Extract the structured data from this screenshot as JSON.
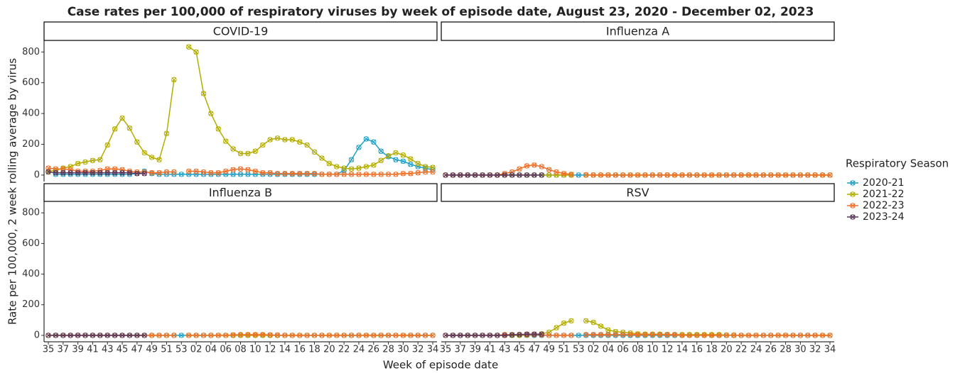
{
  "chart_data": {
    "type": "line",
    "title": "Case rates per 100,000 of respiratory viruses by week of episode date, August 23, 2020 - December 02, 2023",
    "x_label": "Week of episode date",
    "y_label": "Rate per 100,000, 2 week rolling average by virus",
    "legend_title": "Respiratory Season",
    "legend": "right",
    "categories": [
      "35",
      null,
      "37",
      null,
      "39",
      null,
      "41",
      null,
      "43",
      null,
      "45",
      null,
      "47",
      null,
      "49",
      null,
      "51",
      null,
      "53",
      null,
      "02",
      null,
      "04",
      null,
      "06",
      null,
      "08",
      null,
      "10",
      null,
      "12",
      null,
      "14",
      null,
      "16",
      null,
      "18",
      null,
      "20",
      null,
      "22",
      null,
      "24",
      null,
      "26",
      null,
      "28",
      null,
      "30",
      null,
      "32",
      null,
      "34"
    ],
    "ylim": [
      -42,
      875
    ],
    "yticks": [
      0,
      200,
      400,
      600,
      800
    ],
    "seasons": [
      {
        "name": "2020-21",
        "color": "#1f9fc4"
      },
      {
        "name": "2021-22",
        "color": "#b3ad00"
      },
      {
        "name": "2022-23",
        "color": "#ef7028"
      },
      {
        "name": "2023-24",
        "color": "#5a3559"
      }
    ],
    "facets": [
      {
        "title": "COVID-19",
        "series": [
          {
            "values": [
              null,
              5,
              5,
              5,
              5,
              5,
              5,
              5,
              5,
              5,
              5,
              5,
              10,
              25,
              10,
              5,
              5,
              5,
              5,
              5,
              5,
              5,
              5,
              5,
              5,
              5,
              5,
              5,
              5,
              5,
              5,
              5,
              5,
              5,
              5,
              5,
              5,
              5,
              5,
              5,
              30,
              100,
              180,
              235,
              215,
              155,
              120,
              100,
              90,
              70,
              55,
              45,
              35
            ]
          },
          {
            "values": [
              25,
              30,
              45,
              55,
              75,
              85,
              95,
              100,
              195,
              300,
              370,
              305,
              215,
              145,
              115,
              100,
              270,
              620,
              null,
              833,
              800,
              530,
              400,
              300,
              220,
              170,
              140,
              140,
              155,
              195,
              230,
              240,
              230,
              230,
              215,
              195,
              150,
              110,
              75,
              55,
              45,
              40,
              45,
              55,
              65,
              95,
              125,
              145,
              130,
              105,
              75,
              55,
              50
            ]
          },
          {
            "values": [
              45,
              40,
              40,
              35,
              25,
              25,
              25,
              30,
              40,
              40,
              35,
              25,
              20,
              20,
              15,
              15,
              20,
              20,
              null,
              25,
              25,
              20,
              15,
              15,
              25,
              35,
              40,
              35,
              25,
              15,
              15,
              10,
              10,
              10,
              10,
              10,
              10,
              5,
              5,
              5,
              5,
              5,
              5,
              5,
              5,
              5,
              5,
              5,
              10,
              10,
              15,
              20,
              20
            ]
          },
          {
            "values": [
              20,
              15,
              15,
              15,
              15,
              15,
              15,
              15,
              15,
              15,
              15,
              15,
              10,
              10,
              null,
              null,
              null,
              null,
              null,
              null,
              null,
              null,
              null,
              null,
              null,
              null,
              null,
              null,
              null,
              null,
              null,
              null,
              null,
              null,
              null,
              null,
              null,
              null,
              null,
              null,
              null,
              null,
              null,
              null,
              null,
              null,
              null,
              null,
              null,
              null,
              null,
              null,
              null
            ]
          }
        ]
      },
      {
        "title": "Influenza A",
        "series": [
          {
            "values": [
              null,
              0,
              0,
              0,
              0,
              0,
              0,
              0,
              0,
              0,
              0,
              0,
              0,
              0,
              0,
              0,
              0,
              0,
              0,
              0,
              0,
              0,
              0,
              0,
              0,
              0,
              0,
              0,
              0,
              0,
              0,
              0,
              0,
              0,
              0,
              0,
              0,
              0,
              0,
              0,
              0,
              0,
              0,
              0,
              0,
              0,
              0,
              0,
              0,
              0,
              0,
              0,
              0
            ]
          },
          {
            "values": [
              0,
              0,
              0,
              0,
              0,
              0,
              0,
              0,
              0,
              0,
              0,
              0,
              0,
              0,
              0,
              0,
              0,
              0,
              null,
              0,
              0,
              0,
              0,
              0,
              0,
              0,
              0,
              0,
              0,
              0,
              0,
              0,
              0,
              0,
              0,
              0,
              0,
              0,
              0,
              0,
              0,
              0,
              0,
              0,
              0,
              0,
              0,
              0,
              0,
              0,
              0,
              0,
              0
            ]
          },
          {
            "values": [
              0,
              0,
              0,
              0,
              0,
              0,
              0,
              0,
              10,
              20,
              40,
              60,
              65,
              55,
              35,
              20,
              10,
              5,
              null,
              2,
              0,
              0,
              0,
              0,
              0,
              0,
              0,
              0,
              0,
              0,
              0,
              0,
              0,
              0,
              0,
              0,
              0,
              0,
              0,
              0,
              0,
              0,
              0,
              0,
              0,
              0,
              0,
              0,
              0,
              0,
              0,
              0,
              0
            ]
          },
          {
            "values": [
              0,
              0,
              0,
              0,
              0,
              0,
              0,
              0,
              0,
              0,
              0,
              0,
              0,
              0,
              null,
              null,
              null,
              null,
              null,
              null,
              null,
              null,
              null,
              null,
              null,
              null,
              null,
              null,
              null,
              null,
              null,
              null,
              null,
              null,
              null,
              null,
              null,
              null,
              null,
              null,
              null,
              null,
              null,
              null,
              null,
              null,
              null,
              null,
              null,
              null,
              null,
              null,
              null
            ]
          }
        ]
      },
      {
        "title": "Influenza B",
        "series": [
          {
            "values": [
              null,
              0,
              0,
              0,
              0,
              0,
              0,
              0,
              0,
              0,
              0,
              0,
              0,
              0,
              0,
              0,
              0,
              0,
              0,
              0,
              0,
              0,
              0,
              0,
              0,
              0,
              0,
              0,
              0,
              0,
              0,
              0,
              0,
              0,
              0,
              0,
              0,
              0,
              0,
              0,
              0,
              0,
              0,
              0,
              0,
              0,
              0,
              0,
              0,
              0,
              0,
              0,
              0
            ]
          },
          {
            "values": [
              0,
              0,
              0,
              0,
              0,
              0,
              0,
              0,
              0,
              0,
              0,
              0,
              0,
              0,
              0,
              0,
              0,
              0,
              null,
              0,
              0,
              0,
              0,
              0,
              0,
              0,
              0,
              0,
              0,
              0,
              0,
              0,
              0,
              0,
              0,
              0,
              0,
              0,
              0,
              0,
              0,
              0,
              0,
              0,
              0,
              0,
              0,
              0,
              0,
              0,
              0,
              0,
              0
            ]
          },
          {
            "values": [
              0,
              0,
              0,
              0,
              0,
              0,
              0,
              0,
              0,
              0,
              0,
              0,
              0,
              0,
              0,
              0,
              0,
              0,
              null,
              0,
              0,
              0,
              0,
              0,
              0,
              3,
              5,
              5,
              5,
              5,
              3,
              2,
              0,
              0,
              0,
              0,
              0,
              0,
              0,
              0,
              0,
              0,
              0,
              0,
              0,
              0,
              0,
              0,
              0,
              0,
              0,
              0,
              0
            ]
          },
          {
            "values": [
              0,
              0,
              0,
              0,
              0,
              0,
              0,
              0,
              0,
              0,
              0,
              0,
              0,
              0,
              null,
              null,
              null,
              null,
              null,
              null,
              null,
              null,
              null,
              null,
              null,
              null,
              null,
              null,
              null,
              null,
              null,
              null,
              null,
              null,
              null,
              null,
              null,
              null,
              null,
              null,
              null,
              null,
              null,
              null,
              null,
              null,
              null,
              null,
              null,
              null,
              null,
              null,
              null
            ]
          }
        ]
      },
      {
        "title": "RSV",
        "series": [
          {
            "values": [
              null,
              0,
              0,
              0,
              0,
              0,
              0,
              0,
              0,
              0,
              0,
              0,
              0,
              0,
              0,
              0,
              0,
              0,
              0,
              0,
              0,
              0,
              0,
              0,
              0,
              0,
              0,
              0,
              0,
              0,
              0,
              0,
              0,
              0,
              0,
              0,
              0,
              0,
              0,
              0,
              0,
              0,
              0,
              0,
              0,
              0,
              0,
              0,
              0,
              0,
              0,
              0,
              0
            ]
          },
          {
            "values": [
              0,
              0,
              0,
              0,
              0,
              0,
              0,
              0,
              0,
              0,
              0,
              2,
              5,
              10,
              20,
              50,
              80,
              95,
              null,
              95,
              85,
              60,
              35,
              25,
              20,
              15,
              10,
              8,
              8,
              8,
              6,
              5,
              5,
              5,
              5,
              5,
              5,
              5,
              2,
              2,
              0,
              0,
              0,
              0,
              0,
              0,
              0,
              0,
              0,
              0,
              0,
              0,
              0
            ]
          },
          {
            "values": [
              0,
              0,
              0,
              0,
              0,
              0,
              0,
              0,
              5,
              5,
              5,
              5,
              5,
              3,
              0,
              0,
              0,
              0,
              null,
              5,
              5,
              5,
              5,
              5,
              5,
              5,
              5,
              5,
              5,
              5,
              5,
              5,
              0,
              0,
              0,
              0,
              0,
              0,
              0,
              0,
              0,
              0,
              0,
              0,
              0,
              0,
              0,
              0,
              0,
              0,
              0,
              0,
              0
            ]
          },
          {
            "values": [
              0,
              0,
              0,
              0,
              0,
              0,
              0,
              0,
              0,
              3,
              5,
              8,
              8,
              8,
              null,
              null,
              null,
              null,
              null,
              null,
              null,
              null,
              null,
              null,
              null,
              null,
              null,
              null,
              null,
              null,
              null,
              null,
              null,
              null,
              null,
              null,
              null,
              null,
              null,
              null,
              null,
              null,
              null,
              null,
              null,
              null,
              null,
              null,
              null,
              null,
              null,
              null,
              null
            ]
          }
        ]
      }
    ]
  }
}
